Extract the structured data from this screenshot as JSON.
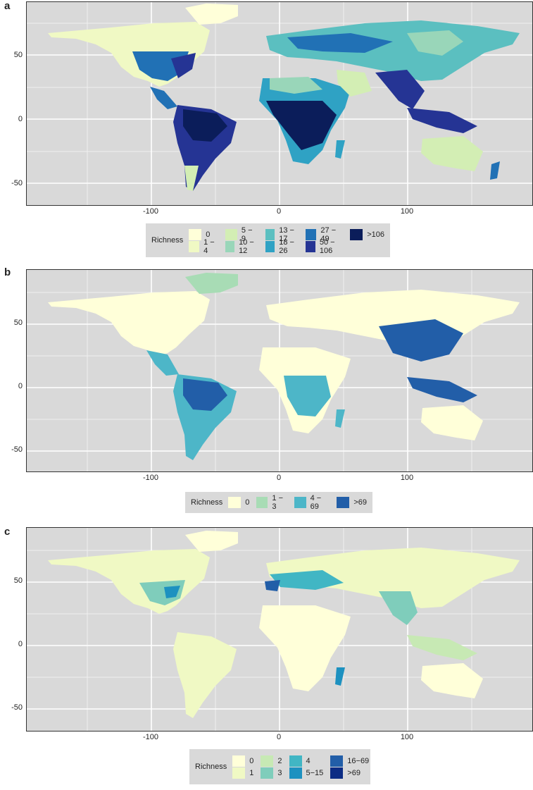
{
  "panels": [
    {
      "letter": "a",
      "yticks": [
        "50",
        "0",
        "-50"
      ],
      "xticks": [
        "-100",
        "0",
        "100"
      ],
      "legend": {
        "title": "Richness",
        "items": [
          {
            "label": "0",
            "color": "#ffffd9"
          },
          {
            "label": "1 − 4",
            "color": "#f0f9c4"
          },
          {
            "label": "5 − 9",
            "color": "#d3eeb4"
          },
          {
            "label": "10 − 12",
            "color": "#99d6b9"
          },
          {
            "label": "13 − 17",
            "color": "#5bbfc0"
          },
          {
            "label": "18 − 26",
            "color": "#2fa2c4"
          },
          {
            "label": "27 − 49",
            "color": "#2171b5"
          },
          {
            "label": "50 − 106",
            "color": "#253494"
          },
          {
            "label": ">106",
            "color": "#0b1d5a"
          }
        ]
      }
    },
    {
      "letter": "b",
      "yticks": [
        "50",
        "0",
        "-50"
      ],
      "xticks": [
        "-100",
        "0",
        "100"
      ],
      "legend": {
        "title": "Richness",
        "items": [
          {
            "label": "0",
            "color": "#ffffd9"
          },
          {
            "label": "1 − 3",
            "color": "#a8dcb5"
          },
          {
            "label": "4 − 69",
            "color": "#4db6c8"
          },
          {
            "label": ">69",
            "color": "#225ea8"
          }
        ]
      }
    },
    {
      "letter": "c",
      "yticks": [
        "50",
        "0",
        "-50"
      ],
      "xticks": [
        "-100",
        "0",
        "100"
      ],
      "legend": {
        "title": "Richness",
        "items": [
          {
            "label": "0",
            "color": "#ffffd9"
          },
          {
            "label": "1",
            "color": "#f0f9c4"
          },
          {
            "label": "2",
            "color": "#c7e9b4"
          },
          {
            "label": "3",
            "color": "#7fcdbb"
          },
          {
            "label": "4",
            "color": "#41b6c4"
          },
          {
            "label": "5−15",
            "color": "#1d91c0"
          },
          {
            "label": "16−69",
            "color": "#225ea8"
          },
          {
            "label": ">69",
            "color": "#0c2c84"
          }
        ]
      }
    }
  ]
}
